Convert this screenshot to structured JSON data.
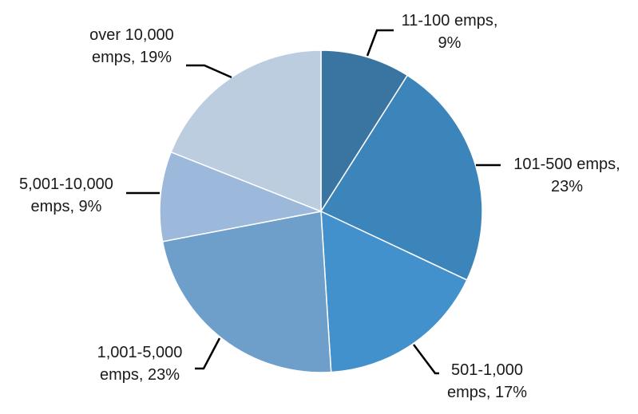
{
  "chart_data": {
    "type": "pie",
    "title": "",
    "start_angle": "12 o'clock",
    "direction": "clockwise",
    "slices": [
      {
        "label": "11-100 emps,",
        "value_label": "9%",
        "value": 9,
        "color": "#3a75a2"
      },
      {
        "label": "101-500 emps,",
        "value_label": "23%",
        "value": 23,
        "color": "#3b85ba"
      },
      {
        "label": "501-1,000",
        "value_label": "emps, 17%",
        "value": 17,
        "color": "#4290cc"
      },
      {
        "label": "1,001-5,000",
        "value_label": "emps, 23%",
        "value": 23,
        "color": "#6e9fcb"
      },
      {
        "label": "5,001-10,000",
        "value_label": "emps, 9%",
        "value": 9,
        "color": "#9cb8db"
      },
      {
        "label": "over 10,000",
        "value_label": "emps, 19%",
        "value": 19,
        "color": "#bdcde0"
      }
    ]
  }
}
